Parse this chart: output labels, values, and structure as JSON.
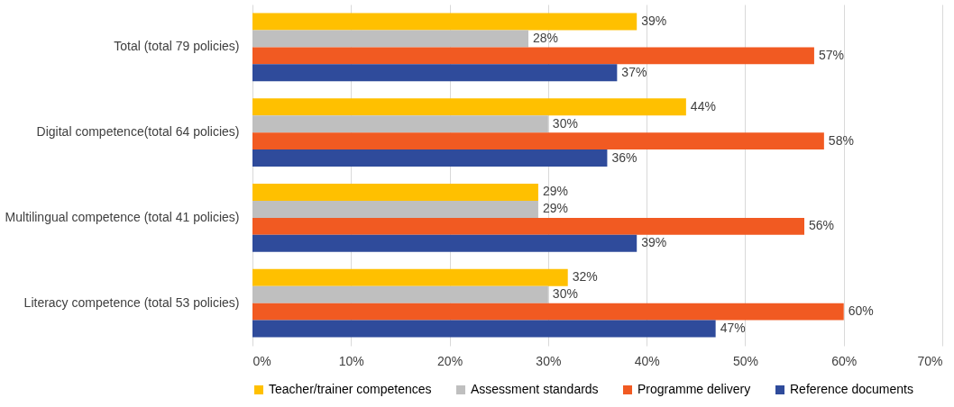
{
  "chart_data": {
    "type": "bar",
    "orientation": "horizontal",
    "categories": [
      "Total (total 79 policies)",
      "Digital competence(total 64 policies)",
      "Multilingual competence (total 41 policies)",
      "Literacy competence (total 53 policies)"
    ],
    "series": [
      {
        "name": "Teacher/trainer competences",
        "color": "#ffc000",
        "values": [
          39,
          44,
          29,
          32
        ],
        "value_labels": [
          "39%",
          "44%",
          "29%",
          "32%"
        ]
      },
      {
        "name": "Assessment standards",
        "color": "#bfbfbf",
        "values": [
          28,
          30,
          29,
          30
        ],
        "value_labels": [
          "28%",
          "30%",
          "29%",
          "30%"
        ]
      },
      {
        "name": "Programme delivery",
        "color": "#f15a22",
        "values": [
          57,
          58,
          56,
          60
        ],
        "value_labels": [
          "57%",
          "58%",
          "56%",
          "60%"
        ]
      },
      {
        "name": "Reference documents",
        "color": "#2f4b9b",
        "values": [
          37,
          36,
          39,
          47
        ],
        "value_labels": [
          "37%",
          "36%",
          "39%",
          "47%"
        ]
      }
    ],
    "xlim": [
      0,
      70
    ],
    "xticks": [
      {
        "value": 0,
        "label": "0%"
      },
      {
        "value": 10,
        "label": "10%"
      },
      {
        "value": 20,
        "label": "20%"
      },
      {
        "value": 30,
        "label": "30%"
      },
      {
        "value": 40,
        "label": "40%"
      },
      {
        "value": 50,
        "label": "50%"
      },
      {
        "value": 60,
        "label": "60%"
      },
      {
        "value": 70,
        "label": "70%"
      }
    ],
    "grid": "x",
    "legend": "bottom"
  }
}
